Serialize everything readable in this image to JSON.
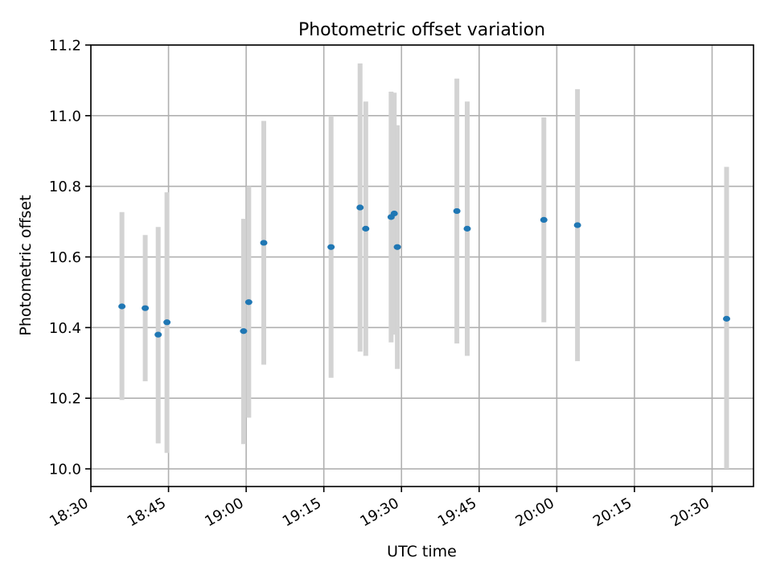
{
  "chart_data": {
    "type": "scatter",
    "title": "Photometric offset variation",
    "xlabel": "UTC time",
    "ylabel": "Photometric offset",
    "x_unit": "UTC time (HH:MM)",
    "xlim": [
      "18:30",
      "20:38"
    ],
    "ylim": [
      9.95,
      11.2
    ],
    "x_ticks": [
      "18:30",
      "18:45",
      "19:00",
      "19:15",
      "19:30",
      "19:45",
      "20:00",
      "20:15",
      "20:30"
    ],
    "y_ticks": [
      10.0,
      10.2,
      10.4,
      10.6,
      10.8,
      11.0,
      11.2
    ],
    "y_tick_labels": [
      "10.0",
      "10.2",
      "10.4",
      "10.6",
      "10.8",
      "11.0",
      "11.2"
    ],
    "grid": true,
    "x_tick_rotation": "slanted",
    "colors": {
      "points": "#1f77b4",
      "error_bars": "#d3d3d3",
      "grid": "#b0b0b0"
    },
    "points": [
      {
        "time": "18:36",
        "y": 10.46,
        "y_low": 10.195,
        "y_high": 10.727
      },
      {
        "time": "18:40.5",
        "y": 10.455,
        "y_low": 10.248,
        "y_high": 10.662
      },
      {
        "time": "18:43",
        "y": 10.38,
        "y_low": 10.072,
        "y_high": 10.685
      },
      {
        "time": "18:44.7",
        "y": 10.415,
        "y_low": 10.045,
        "y_high": 10.783
      },
      {
        "time": "18:59.5",
        "y": 10.39,
        "y_low": 10.07,
        "y_high": 10.708
      },
      {
        "time": "19:00.5",
        "y": 10.472,
        "y_low": 10.145,
        "y_high": 10.8
      },
      {
        "time": "19:03.4",
        "y": 10.64,
        "y_low": 10.295,
        "y_high": 10.985
      },
      {
        "time": "19:16.4",
        "y": 10.628,
        "y_low": 10.258,
        "y_high": 11.0
      },
      {
        "time": "19:22",
        "y": 10.74,
        "y_low": 10.332,
        "y_high": 11.148
      },
      {
        "time": "19:23.1",
        "y": 10.68,
        "y_low": 10.32,
        "y_high": 11.04
      },
      {
        "time": "19:28",
        "y": 10.713,
        "y_low": 10.358,
        "y_high": 11.068
      },
      {
        "time": "19:28.6",
        "y": 10.723,
        "y_low": 10.38,
        "y_high": 11.065
      },
      {
        "time": "19:29.2",
        "y": 10.628,
        "y_low": 10.283,
        "y_high": 10.973
      },
      {
        "time": "19:40.7",
        "y": 10.73,
        "y_low": 10.355,
        "y_high": 11.105
      },
      {
        "time": "19:42.7",
        "y": 10.68,
        "y_low": 10.32,
        "y_high": 11.04
      },
      {
        "time": "19:57.5",
        "y": 10.705,
        "y_low": 10.415,
        "y_high": 10.995
      },
      {
        "time": "20:04",
        "y": 10.69,
        "y_low": 10.305,
        "y_high": 11.075
      },
      {
        "time": "20:32.8",
        "y": 10.425,
        "y_low": 10.0,
        "y_high": 10.855
      }
    ]
  }
}
